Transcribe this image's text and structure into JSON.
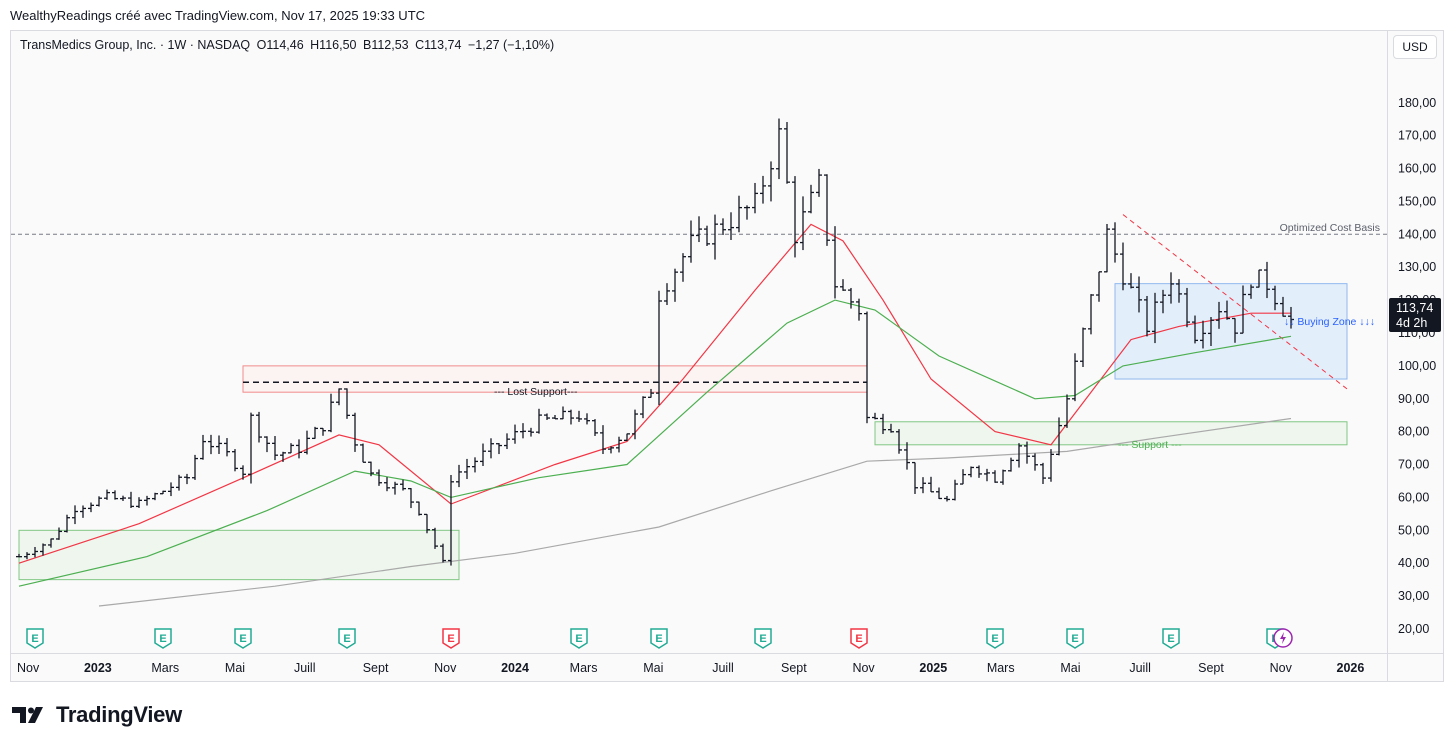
{
  "header": {
    "attribution": "WealthyReadings créé avec TradingView.com, Nov 17, 2025 19:33 UTC"
  },
  "legend": {
    "symbol": "TransMedics Group, Inc. · 1W · NASDAQ",
    "open": "O114,46",
    "high": "H116,50",
    "low": "B112,53",
    "close": "C113,74",
    "change": "−1,27 (−1,10%)"
  },
  "currency": "USD",
  "price_label": {
    "price": "113,74",
    "countdown": "4d 2h"
  },
  "annotations": {
    "cost_basis": "Optimized Cost Basis",
    "lost_support": "--- Lost Support---",
    "support": "--- Support ---",
    "buying_zone": "↓↓ Buying Zone ↓↓↓"
  },
  "footer": {
    "brand": "TradingView"
  },
  "colors": {
    "candle": "#131722",
    "ema_fast": "#f23645",
    "ema_mid": "#4caf50",
    "sma_slow": "#a9a9a9",
    "buy_zone_fill": "#e3eefb",
    "support_fill": "#eef6ee",
    "earnings_green": "#22ab94",
    "earnings_red": "#f23645",
    "dividend_purple": "#9c27b0"
  },
  "chart_data": {
    "type": "ohlc",
    "interval": "1W",
    "ylim": [
      13,
      193
    ],
    "y_ticks": [
      "20,00",
      "30,00",
      "40,00",
      "50,00",
      "60,00",
      "70,00",
      "80,00",
      "90,00",
      "100,00",
      "110,00",
      "120,00",
      "130,00",
      "140,00",
      "150,00",
      "160,00",
      "170,00",
      "180,00"
    ],
    "x_ticks": [
      {
        "label": "Nov",
        "date": "2022-11"
      },
      {
        "label": "2023",
        "date": "2023-01"
      },
      {
        "label": "Mars",
        "date": "2023-03"
      },
      {
        "label": "Mai",
        "date": "2023-05"
      },
      {
        "label": "Juill",
        "date": "2023-07"
      },
      {
        "label": "Sept",
        "date": "2023-09"
      },
      {
        "label": "Nov",
        "date": "2023-11"
      },
      {
        "label": "2024",
        "date": "2024-01"
      },
      {
        "label": "Mars",
        "date": "2024-03"
      },
      {
        "label": "Mai",
        "date": "2024-05"
      },
      {
        "label": "Juill",
        "date": "2024-07"
      },
      {
        "label": "Sept",
        "date": "2024-09"
      },
      {
        "label": "Nov",
        "date": "2024-11"
      },
      {
        "label": "2025",
        "date": "2025-01"
      },
      {
        "label": "Mars",
        "date": "2025-03"
      },
      {
        "label": "Mai",
        "date": "2025-05"
      },
      {
        "label": "Juill",
        "date": "2025-07"
      },
      {
        "label": "Sept",
        "date": "2025-09"
      },
      {
        "label": "Nov",
        "date": "2025-11"
      },
      {
        "label": "2026",
        "date": "2026-01"
      }
    ],
    "price_path": [
      [
        "2022-10-24",
        42
      ],
      [
        "2022-11-21",
        47
      ],
      [
        "2022-12-12",
        57
      ],
      [
        "2023-01-09",
        60
      ],
      [
        "2023-02-06",
        58
      ],
      [
        "2023-02-27",
        62
      ],
      [
        "2023-03-20",
        66
      ],
      [
        "2023-04-03",
        78
      ],
      [
        "2023-04-24",
        73
      ],
      [
        "2023-05-08",
        68
      ],
      [
        "2023-05-15",
        84
      ],
      [
        "2023-06-05",
        73
      ],
      [
        "2023-06-26",
        75
      ],
      [
        "2023-07-17",
        82
      ],
      [
        "2023-07-31",
        93
      ],
      [
        "2023-08-14",
        77
      ],
      [
        "2023-08-28",
        67
      ],
      [
        "2023-09-25",
        62
      ],
      [
        "2023-10-09",
        56
      ],
      [
        "2023-10-30",
        40
      ],
      [
        "2023-11-06",
        66
      ],
      [
        "2023-12-04",
        73
      ],
      [
        "2024-01-01",
        79
      ],
      [
        "2024-01-22",
        83
      ],
      [
        "2024-02-26",
        85
      ],
      [
        "2024-03-18",
        75
      ],
      [
        "2024-04-08",
        80
      ],
      [
        "2024-04-29",
        93
      ],
      [
        "2024-05-06",
        122
      ],
      [
        "2024-06-03",
        137
      ],
      [
        "2024-07-01",
        143
      ],
      [
        "2024-07-29",
        149
      ],
      [
        "2024-08-19",
        170
      ],
      [
        "2024-09-02",
        140
      ],
      [
        "2024-09-23",
        155
      ],
      [
        "2024-10-07",
        125
      ],
      [
        "2024-10-28",
        117
      ],
      [
        "2024-11-04",
        84
      ],
      [
        "2024-11-25",
        82
      ],
      [
        "2024-12-16",
        64
      ],
      [
        "2025-01-13",
        59
      ],
      [
        "2025-02-03",
        70
      ],
      [
        "2025-02-24",
        66
      ],
      [
        "2025-03-17",
        76
      ],
      [
        "2025-04-07",
        66
      ],
      [
        "2025-04-28",
        90
      ],
      [
        "2025-05-12",
        110
      ],
      [
        "2025-06-02",
        140
      ],
      [
        "2025-06-16",
        128
      ],
      [
        "2025-07-07",
        112
      ],
      [
        "2025-07-28",
        127
      ],
      [
        "2025-08-18",
        110
      ],
      [
        "2025-09-08",
        118
      ],
      [
        "2025-09-22",
        112
      ],
      [
        "2025-10-06",
        127
      ],
      [
        "2025-10-20",
        125
      ],
      [
        "2025-11-10",
        113.74
      ]
    ],
    "series": [
      {
        "name": "EMA fast",
        "color": "#f23645",
        "points": [
          [
            "2022-10-24",
            40
          ],
          [
            "2023-02-06",
            52
          ],
          [
            "2023-05-15",
            67
          ],
          [
            "2023-07-31",
            79
          ],
          [
            "2023-09-04",
            76
          ],
          [
            "2023-11-06",
            58
          ],
          [
            "2024-02-05",
            70
          ],
          [
            "2024-04-08",
            77
          ],
          [
            "2024-05-27",
            96
          ],
          [
            "2024-07-29",
            123
          ],
          [
            "2024-09-16",
            143
          ],
          [
            "2024-10-14",
            138
          ],
          [
            "2024-11-18",
            120
          ],
          [
            "2024-12-30",
            96
          ],
          [
            "2025-02-24",
            80
          ],
          [
            "2025-04-14",
            76
          ],
          [
            "2025-05-19",
            92
          ],
          [
            "2025-06-23",
            108
          ],
          [
            "2025-08-04",
            112
          ],
          [
            "2025-10-06",
            116
          ],
          [
            "2025-11-10",
            116
          ]
        ]
      },
      {
        "name": "EMA mid",
        "color": "#4caf50",
        "points": [
          [
            "2022-10-24",
            33
          ],
          [
            "2023-02-13",
            42
          ],
          [
            "2023-05-29",
            56
          ],
          [
            "2023-08-14",
            68
          ],
          [
            "2023-10-02",
            65
          ],
          [
            "2023-11-06",
            60
          ],
          [
            "2024-01-22",
            66
          ],
          [
            "2024-04-08",
            70
          ],
          [
            "2024-06-17",
            92
          ],
          [
            "2024-08-26",
            113
          ],
          [
            "2024-10-07",
            120
          ],
          [
            "2024-11-11",
            117
          ],
          [
            "2025-01-06",
            103
          ],
          [
            "2025-03-31",
            90
          ],
          [
            "2025-05-05",
            91
          ],
          [
            "2025-06-16",
            100
          ],
          [
            "2025-08-18",
            104
          ],
          [
            "2025-11-10",
            109
          ]
        ]
      },
      {
        "name": "SMA slow",
        "color": "#a9a9a9",
        "points": [
          [
            "2023-01-02",
            27
          ],
          [
            "2023-06-05",
            33
          ],
          [
            "2023-10-02",
            39
          ],
          [
            "2024-01-01",
            43
          ],
          [
            "2024-05-06",
            51
          ],
          [
            "2024-08-12",
            62
          ],
          [
            "2024-11-04",
            71
          ],
          [
            "2025-01-13",
            72
          ],
          [
            "2025-04-28",
            74
          ],
          [
            "2025-07-14",
            78
          ],
          [
            "2025-11-10",
            84
          ]
        ]
      }
    ],
    "levels": [
      {
        "name": "Optimized Cost Basis",
        "value": 140
      },
      {
        "name": "Lost Support",
        "value": 95
      }
    ],
    "zones": [
      {
        "name": "Buying Zone",
        "from": "2025-06-09",
        "to": "2025-12-29",
        "low": 96,
        "high": 125
      },
      {
        "name": "Support",
        "from": "2024-11-11",
        "to": "2025-12-29",
        "low": 76,
        "high": 83
      },
      {
        "name": "Lost Support",
        "from": "2023-05-08",
        "to": "2024-11-04",
        "low": 92,
        "high": 100
      },
      {
        "name": "Base",
        "from": "2022-10-24",
        "to": "2023-11-13",
        "low": 35,
        "high": 50
      }
    ],
    "trendline": {
      "from": [
        "2025-06-16",
        146
      ],
      "to": [
        "2025-12-29",
        93
      ]
    },
    "earnings": [
      {
        "date": "2022-11-07",
        "type": "E"
      },
      {
        "date": "2023-02-27",
        "type": "E"
      },
      {
        "date": "2023-05-08",
        "type": "E"
      },
      {
        "date": "2023-08-07",
        "type": "E"
      },
      {
        "date": "2023-11-06",
        "type": "E-miss"
      },
      {
        "date": "2024-02-26",
        "type": "E"
      },
      {
        "date": "2024-05-06",
        "type": "E"
      },
      {
        "date": "2024-08-05",
        "type": "E"
      },
      {
        "date": "2024-10-28",
        "type": "E-miss"
      },
      {
        "date": "2025-02-24",
        "type": "E"
      },
      {
        "date": "2025-05-05",
        "type": "E"
      },
      {
        "date": "2025-07-28",
        "type": "E"
      },
      {
        "date": "2025-10-27",
        "type": "E"
      },
      {
        "date": "2025-11-03",
        "type": "lightning"
      }
    ]
  }
}
